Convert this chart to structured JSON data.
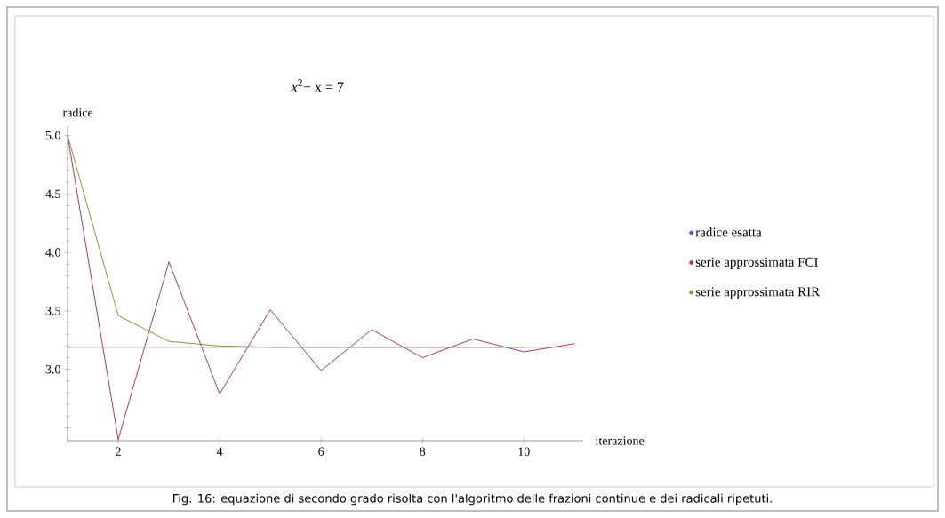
{
  "chart_data": {
    "type": "line",
    "title": "*x*$^{2}$− x = 7",
    "xlabel": "iterazione",
    "ylabel": "radice",
    "xlim": [
      1,
      11.17
    ],
    "ylim": [
      2.39,
      5.08
    ],
    "xticks": [
      {
        "value": 1,
        "label": null
      },
      2,
      4,
      6,
      8,
      10
    ],
    "yticks": [
      {
        "value": 2.5,
        "label": null
      },
      {
        "value": 3,
        "label": "3.0"
      },
      3.5,
      {
        "value": 4,
        "label": "4.0"
      },
      4.5,
      {
        "value": 5,
        "label": "5.0"
      }
    ],
    "legend": "right",
    "series": [
      {
        "name": "radice esatta",
        "color": "#5a5aa8",
        "x": [
          1,
          2,
          3,
          4,
          5,
          6,
          7,
          8,
          9,
          10
        ],
        "values": [
          3.19,
          3.19,
          3.19,
          3.19,
          3.19,
          3.19,
          3.19,
          3.19,
          3.19,
          3.19
        ]
      },
      {
        "name": "serie approssimata FCI",
        "color": "#a33a6f",
        "x": [
          1,
          2,
          3,
          4,
          5,
          6,
          7,
          8,
          9,
          10,
          11
        ],
        "values": [
          5,
          2.4,
          3.92,
          2.79,
          3.51,
          2.99,
          3.34,
          3.1,
          3.26,
          3.15,
          3.22
        ]
      },
      {
        "name": "serie approssimata RIR",
        "color": "#9b8a3c",
        "x": [
          1,
          2,
          3,
          4,
          5,
          6,
          7,
          8,
          9,
          10,
          11
        ],
        "values": [
          5,
          3.46,
          3.24,
          3.2,
          3.19,
          3.19,
          3.19,
          3.19,
          3.19,
          3.19,
          3.19
        ]
      }
    ],
    "annotations": [
      "Fig. 16: equazione di secondo grado risolta con l'algoritmo delle frazioni continue e dei radicali ripetuti."
    ]
  }
}
